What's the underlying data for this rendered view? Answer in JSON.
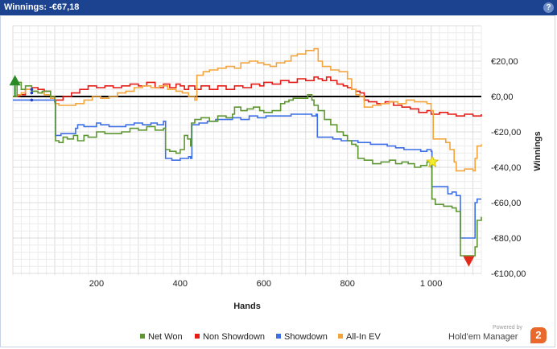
{
  "window": {
    "title": "Winnings: -€67,18",
    "help_glyph": "?"
  },
  "chart_data": {
    "type": "line",
    "title": "",
    "xlabel": "Hands",
    "ylabel": "Winnings",
    "xlim": [
      0,
      1120
    ],
    "ylim": [
      -100,
      40
    ],
    "x_ticks": [
      200,
      400,
      600,
      800,
      1000
    ],
    "x_tick_labels": [
      "200",
      "400",
      "600",
      "800",
      "1 000"
    ],
    "y_ticks": [
      20,
      0,
      -20,
      -40,
      -60,
      -80,
      -100
    ],
    "y_tick_labels": [
      "€20,00",
      "€0,00",
      "-€20,00",
      "-€40,00",
      "-€60,00",
      "-€80,00",
      "-€100,00"
    ],
    "y_axis_position": "right",
    "grid": true,
    "legend_position": "bottom",
    "zero_line": true,
    "series": [
      {
        "name": "Net Won",
        "color": "#5e9632",
        "points": [
          [
            0,
            0
          ],
          [
            8,
            0
          ],
          [
            10,
            8
          ],
          [
            20,
            4
          ],
          [
            30,
            6
          ],
          [
            45,
            3
          ],
          [
            60,
            2
          ],
          [
            70,
            3
          ],
          [
            90,
            0
          ],
          [
            100,
            -2
          ],
          [
            102,
            -25
          ],
          [
            110,
            -26
          ],
          [
            120,
            -23
          ],
          [
            130,
            -24
          ],
          [
            145,
            -22
          ],
          [
            155,
            -25
          ],
          [
            170,
            -22
          ],
          [
            180,
            -23
          ],
          [
            200,
            -20
          ],
          [
            220,
            -21
          ],
          [
            240,
            -21
          ],
          [
            260,
            -20
          ],
          [
            280,
            -18
          ],
          [
            300,
            -19
          ],
          [
            320,
            -17
          ],
          [
            340,
            -19
          ],
          [
            360,
            -18
          ],
          [
            365,
            -30
          ],
          [
            375,
            -31
          ],
          [
            390,
            -32
          ],
          [
            400,
            -30
          ],
          [
            410,
            -22
          ],
          [
            418,
            -24
          ],
          [
            425,
            -28
          ],
          [
            427,
            -15
          ],
          [
            435,
            -13
          ],
          [
            450,
            -12
          ],
          [
            470,
            -14
          ],
          [
            490,
            -11
          ],
          [
            510,
            -12
          ],
          [
            525,
            -10
          ],
          [
            530,
            -6
          ],
          [
            545,
            -8
          ],
          [
            560,
            -7
          ],
          [
            575,
            -6
          ],
          [
            590,
            -8
          ],
          [
            600,
            -9
          ],
          [
            620,
            -8
          ],
          [
            640,
            -4
          ],
          [
            650,
            -3
          ],
          [
            660,
            -2
          ],
          [
            670,
            -1
          ],
          [
            690,
            -1
          ],
          [
            705,
            1
          ],
          [
            715,
            -2
          ],
          [
            720,
            -5
          ],
          [
            730,
            -8
          ],
          [
            745,
            -13
          ],
          [
            760,
            -16
          ],
          [
            775,
            -20
          ],
          [
            790,
            -22
          ],
          [
            800,
            -25
          ],
          [
            810,
            -27
          ],
          [
            820,
            -28
          ],
          [
            825,
            -35
          ],
          [
            840,
            -36
          ],
          [
            860,
            -38
          ],
          [
            880,
            -37
          ],
          [
            900,
            -36
          ],
          [
            915,
            -38
          ],
          [
            930,
            -37
          ],
          [
            945,
            -38
          ],
          [
            960,
            -40
          ],
          [
            975,
            -39
          ],
          [
            990,
            -37
          ],
          [
            1000,
            -40
          ],
          [
            1002,
            -58
          ],
          [
            1010,
            -61
          ],
          [
            1030,
            -62
          ],
          [
            1050,
            -63
          ],
          [
            1060,
            -65
          ],
          [
            1070,
            -90
          ],
          [
            1085,
            -90
          ],
          [
            1100,
            -90
          ],
          [
            1105,
            -85
          ],
          [
            1110,
            -70
          ],
          [
            1120,
            -68
          ]
        ]
      },
      {
        "name": "Non Showdown",
        "color": "#e51b16",
        "points": [
          [
            0,
            0
          ],
          [
            15,
            1
          ],
          [
            30,
            4
          ],
          [
            45,
            5
          ],
          [
            60,
            4
          ],
          [
            75,
            3
          ],
          [
            90,
            0
          ],
          [
            100,
            -2
          ],
          [
            120,
            0
          ],
          [
            140,
            2
          ],
          [
            160,
            4
          ],
          [
            180,
            6
          ],
          [
            200,
            5
          ],
          [
            220,
            6
          ],
          [
            240,
            5
          ],
          [
            260,
            6
          ],
          [
            280,
            7
          ],
          [
            300,
            6
          ],
          [
            320,
            8
          ],
          [
            340,
            5
          ],
          [
            360,
            7
          ],
          [
            375,
            5
          ],
          [
            390,
            7
          ],
          [
            400,
            6
          ],
          [
            410,
            4
          ],
          [
            420,
            6
          ],
          [
            435,
            4
          ],
          [
            450,
            6
          ],
          [
            470,
            4
          ],
          [
            490,
            6
          ],
          [
            510,
            4
          ],
          [
            530,
            6
          ],
          [
            550,
            5
          ],
          [
            570,
            7
          ],
          [
            590,
            6
          ],
          [
            600,
            8
          ],
          [
            620,
            7
          ],
          [
            640,
            9
          ],
          [
            660,
            8
          ],
          [
            680,
            10
          ],
          [
            700,
            9
          ],
          [
            720,
            11
          ],
          [
            730,
            10
          ],
          [
            740,
            9
          ],
          [
            750,
            11
          ],
          [
            760,
            9
          ],
          [
            775,
            7
          ],
          [
            790,
            6
          ],
          [
            800,
            5
          ],
          [
            810,
            4
          ],
          [
            820,
            3
          ],
          [
            830,
            2
          ],
          [
            840,
            -2
          ],
          [
            850,
            -3
          ],
          [
            870,
            -4
          ],
          [
            890,
            -3
          ],
          [
            910,
            -5
          ],
          [
            930,
            -6
          ],
          [
            950,
            -7
          ],
          [
            970,
            -9
          ],
          [
            990,
            -8
          ],
          [
            1000,
            -10
          ],
          [
            1020,
            -9
          ],
          [
            1040,
            -10
          ],
          [
            1060,
            -11
          ],
          [
            1080,
            -10
          ],
          [
            1100,
            -11
          ],
          [
            1120,
            -10
          ]
        ]
      },
      {
        "name": "Showdown",
        "color": "#3c6ee6",
        "points": [
          [
            0,
            -2
          ],
          [
            20,
            -2
          ],
          [
            40,
            -2
          ],
          [
            60,
            -2
          ],
          [
            90,
            -2
          ],
          [
            100,
            -3
          ],
          [
            102,
            -22
          ],
          [
            115,
            -21
          ],
          [
            130,
            -21
          ],
          [
            150,
            -18
          ],
          [
            155,
            -16
          ],
          [
            170,
            -17
          ],
          [
            190,
            -17
          ],
          [
            200,
            -15
          ],
          [
            210,
            -16
          ],
          [
            230,
            -17
          ],
          [
            250,
            -17
          ],
          [
            270,
            -16
          ],
          [
            290,
            -15
          ],
          [
            310,
            -16
          ],
          [
            330,
            -15
          ],
          [
            345,
            -16
          ],
          [
            360,
            -14
          ],
          [
            365,
            -35
          ],
          [
            380,
            -36
          ],
          [
            400,
            -35
          ],
          [
            420,
            -34
          ],
          [
            425,
            -35
          ],
          [
            428,
            -16
          ],
          [
            445,
            -15
          ],
          [
            465,
            -14
          ],
          [
            485,
            -13
          ],
          [
            505,
            -13
          ],
          [
            525,
            -12
          ],
          [
            545,
            -13
          ],
          [
            565,
            -11
          ],
          [
            585,
            -12
          ],
          [
            605,
            -11
          ],
          [
            625,
            -11
          ],
          [
            645,
            -11
          ],
          [
            665,
            -10
          ],
          [
            685,
            -10
          ],
          [
            705,
            -10
          ],
          [
            715,
            -11
          ],
          [
            725,
            -10
          ],
          [
            728,
            -23
          ],
          [
            745,
            -23
          ],
          [
            765,
            -24
          ],
          [
            785,
            -25
          ],
          [
            805,
            -25
          ],
          [
            825,
            -26
          ],
          [
            840,
            -26
          ],
          [
            855,
            -27
          ],
          [
            875,
            -27
          ],
          [
            895,
            -28
          ],
          [
            915,
            -29
          ],
          [
            935,
            -30
          ],
          [
            955,
            -30
          ],
          [
            975,
            -31
          ],
          [
            990,
            -30
          ],
          [
            1000,
            -31
          ],
          [
            1002,
            -51
          ],
          [
            1020,
            -51
          ],
          [
            1040,
            -55
          ],
          [
            1050,
            -54
          ],
          [
            1060,
            -56
          ],
          [
            1070,
            -80
          ],
          [
            1090,
            -80
          ],
          [
            1100,
            -80
          ],
          [
            1105,
            -60
          ],
          [
            1110,
            -58
          ],
          [
            1120,
            -58
          ]
        ]
      },
      {
        "name": "All-In EV",
        "color": "#f3a53c",
        "points": [
          [
            0,
            0
          ],
          [
            10,
            1
          ],
          [
            20,
            2
          ],
          [
            30,
            4
          ],
          [
            45,
            3
          ],
          [
            60,
            2
          ],
          [
            75,
            1
          ],
          [
            90,
            -1
          ],
          [
            100,
            -4
          ],
          [
            110,
            -5
          ],
          [
            130,
            -5
          ],
          [
            150,
            -4
          ],
          [
            170,
            -2
          ],
          [
            190,
            0
          ],
          [
            210,
            -1
          ],
          [
            230,
            0
          ],
          [
            250,
            2
          ],
          [
            270,
            3
          ],
          [
            290,
            5
          ],
          [
            310,
            6
          ],
          [
            330,
            5
          ],
          [
            350,
            6
          ],
          [
            370,
            4
          ],
          [
            390,
            3
          ],
          [
            405,
            2
          ],
          [
            420,
            0
          ],
          [
            435,
            -2
          ],
          [
            440,
            12
          ],
          [
            455,
            14
          ],
          [
            470,
            15
          ],
          [
            490,
            16
          ],
          [
            510,
            17
          ],
          [
            530,
            16
          ],
          [
            545,
            19
          ],
          [
            565,
            20
          ],
          [
            585,
            19
          ],
          [
            600,
            18
          ],
          [
            615,
            17
          ],
          [
            630,
            19
          ],
          [
            650,
            20
          ],
          [
            665,
            23
          ],
          [
            680,
            24
          ],
          [
            700,
            26
          ],
          [
            720,
            27
          ],
          [
            730,
            20
          ],
          [
            740,
            17
          ],
          [
            760,
            15
          ],
          [
            780,
            14
          ],
          [
            800,
            10
          ],
          [
            810,
            4
          ],
          [
            820,
            1
          ],
          [
            830,
            0
          ],
          [
            840,
            -6
          ],
          [
            860,
            -5
          ],
          [
            880,
            -4
          ],
          [
            900,
            -3
          ],
          [
            920,
            -4
          ],
          [
            940,
            -2
          ],
          [
            960,
            -3
          ],
          [
            975,
            -3
          ],
          [
            990,
            -4
          ],
          [
            1000,
            -8
          ],
          [
            1005,
            -24
          ],
          [
            1020,
            -24
          ],
          [
            1035,
            -26
          ],
          [
            1045,
            -30
          ],
          [
            1055,
            -37
          ],
          [
            1060,
            -42
          ],
          [
            1080,
            -41
          ],
          [
            1100,
            -42
          ],
          [
            1105,
            -35
          ],
          [
            1110,
            -28
          ],
          [
            1120,
            -27
          ]
        ]
      }
    ],
    "markers": [
      {
        "type": "triangle-up",
        "x": 5,
        "y": 9,
        "color": "#2a8a26"
      },
      {
        "type": "star",
        "x": 1003,
        "y": -37,
        "color": "#f4ec2a"
      },
      {
        "type": "triangle-down",
        "x": 1090,
        "y": -93,
        "color": "#e12a1b"
      }
    ]
  },
  "brand": {
    "powered_by": "Powered by",
    "name": "Hold'em Manager",
    "logo_glyph": "2"
  }
}
